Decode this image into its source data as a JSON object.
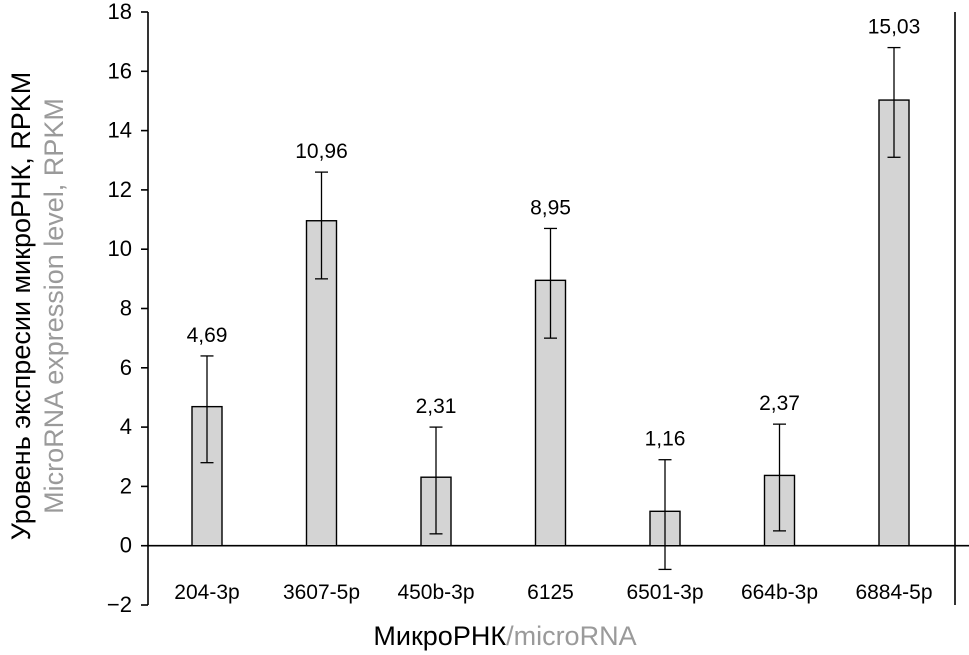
{
  "chart_data": {
    "type": "bar",
    "categories": [
      "204-3p",
      "3607-5p",
      "450b-3p",
      "6125",
      "6501-3p",
      "664b-3p",
      "6884-5p"
    ],
    "values": [
      4.69,
      10.96,
      2.31,
      8.95,
      1.16,
      2.37,
      15.03
    ],
    "value_labels": [
      "4,69",
      "10,96",
      "2,31",
      "8,95",
      "1,16",
      "2,37",
      "15,03"
    ],
    "error_low": [
      2.8,
      9.0,
      0.4,
      7.0,
      -0.8,
      0.5,
      13.1
    ],
    "error_high": [
      6.4,
      12.6,
      4.0,
      10.7,
      2.9,
      4.1,
      16.8
    ],
    "ylim": [
      -2,
      18
    ],
    "yticks": [
      -2,
      0,
      2,
      4,
      6,
      8,
      10,
      12,
      14,
      16,
      18
    ],
    "ytick_labels": [
      "−2",
      "0",
      "2",
      "4",
      "6",
      "8",
      "10",
      "12",
      "14",
      "16",
      "18"
    ],
    "xlabel": {
      "main": "МикроРНК",
      "separator": "/",
      "second": "microRNA"
    },
    "ylabel": {
      "main": "Уровень экспресии микроРНК, RPKM",
      "second": "MicroRNA expression level, RPKM"
    },
    "bar_color": "#d4d4d4",
    "grid": false
  }
}
